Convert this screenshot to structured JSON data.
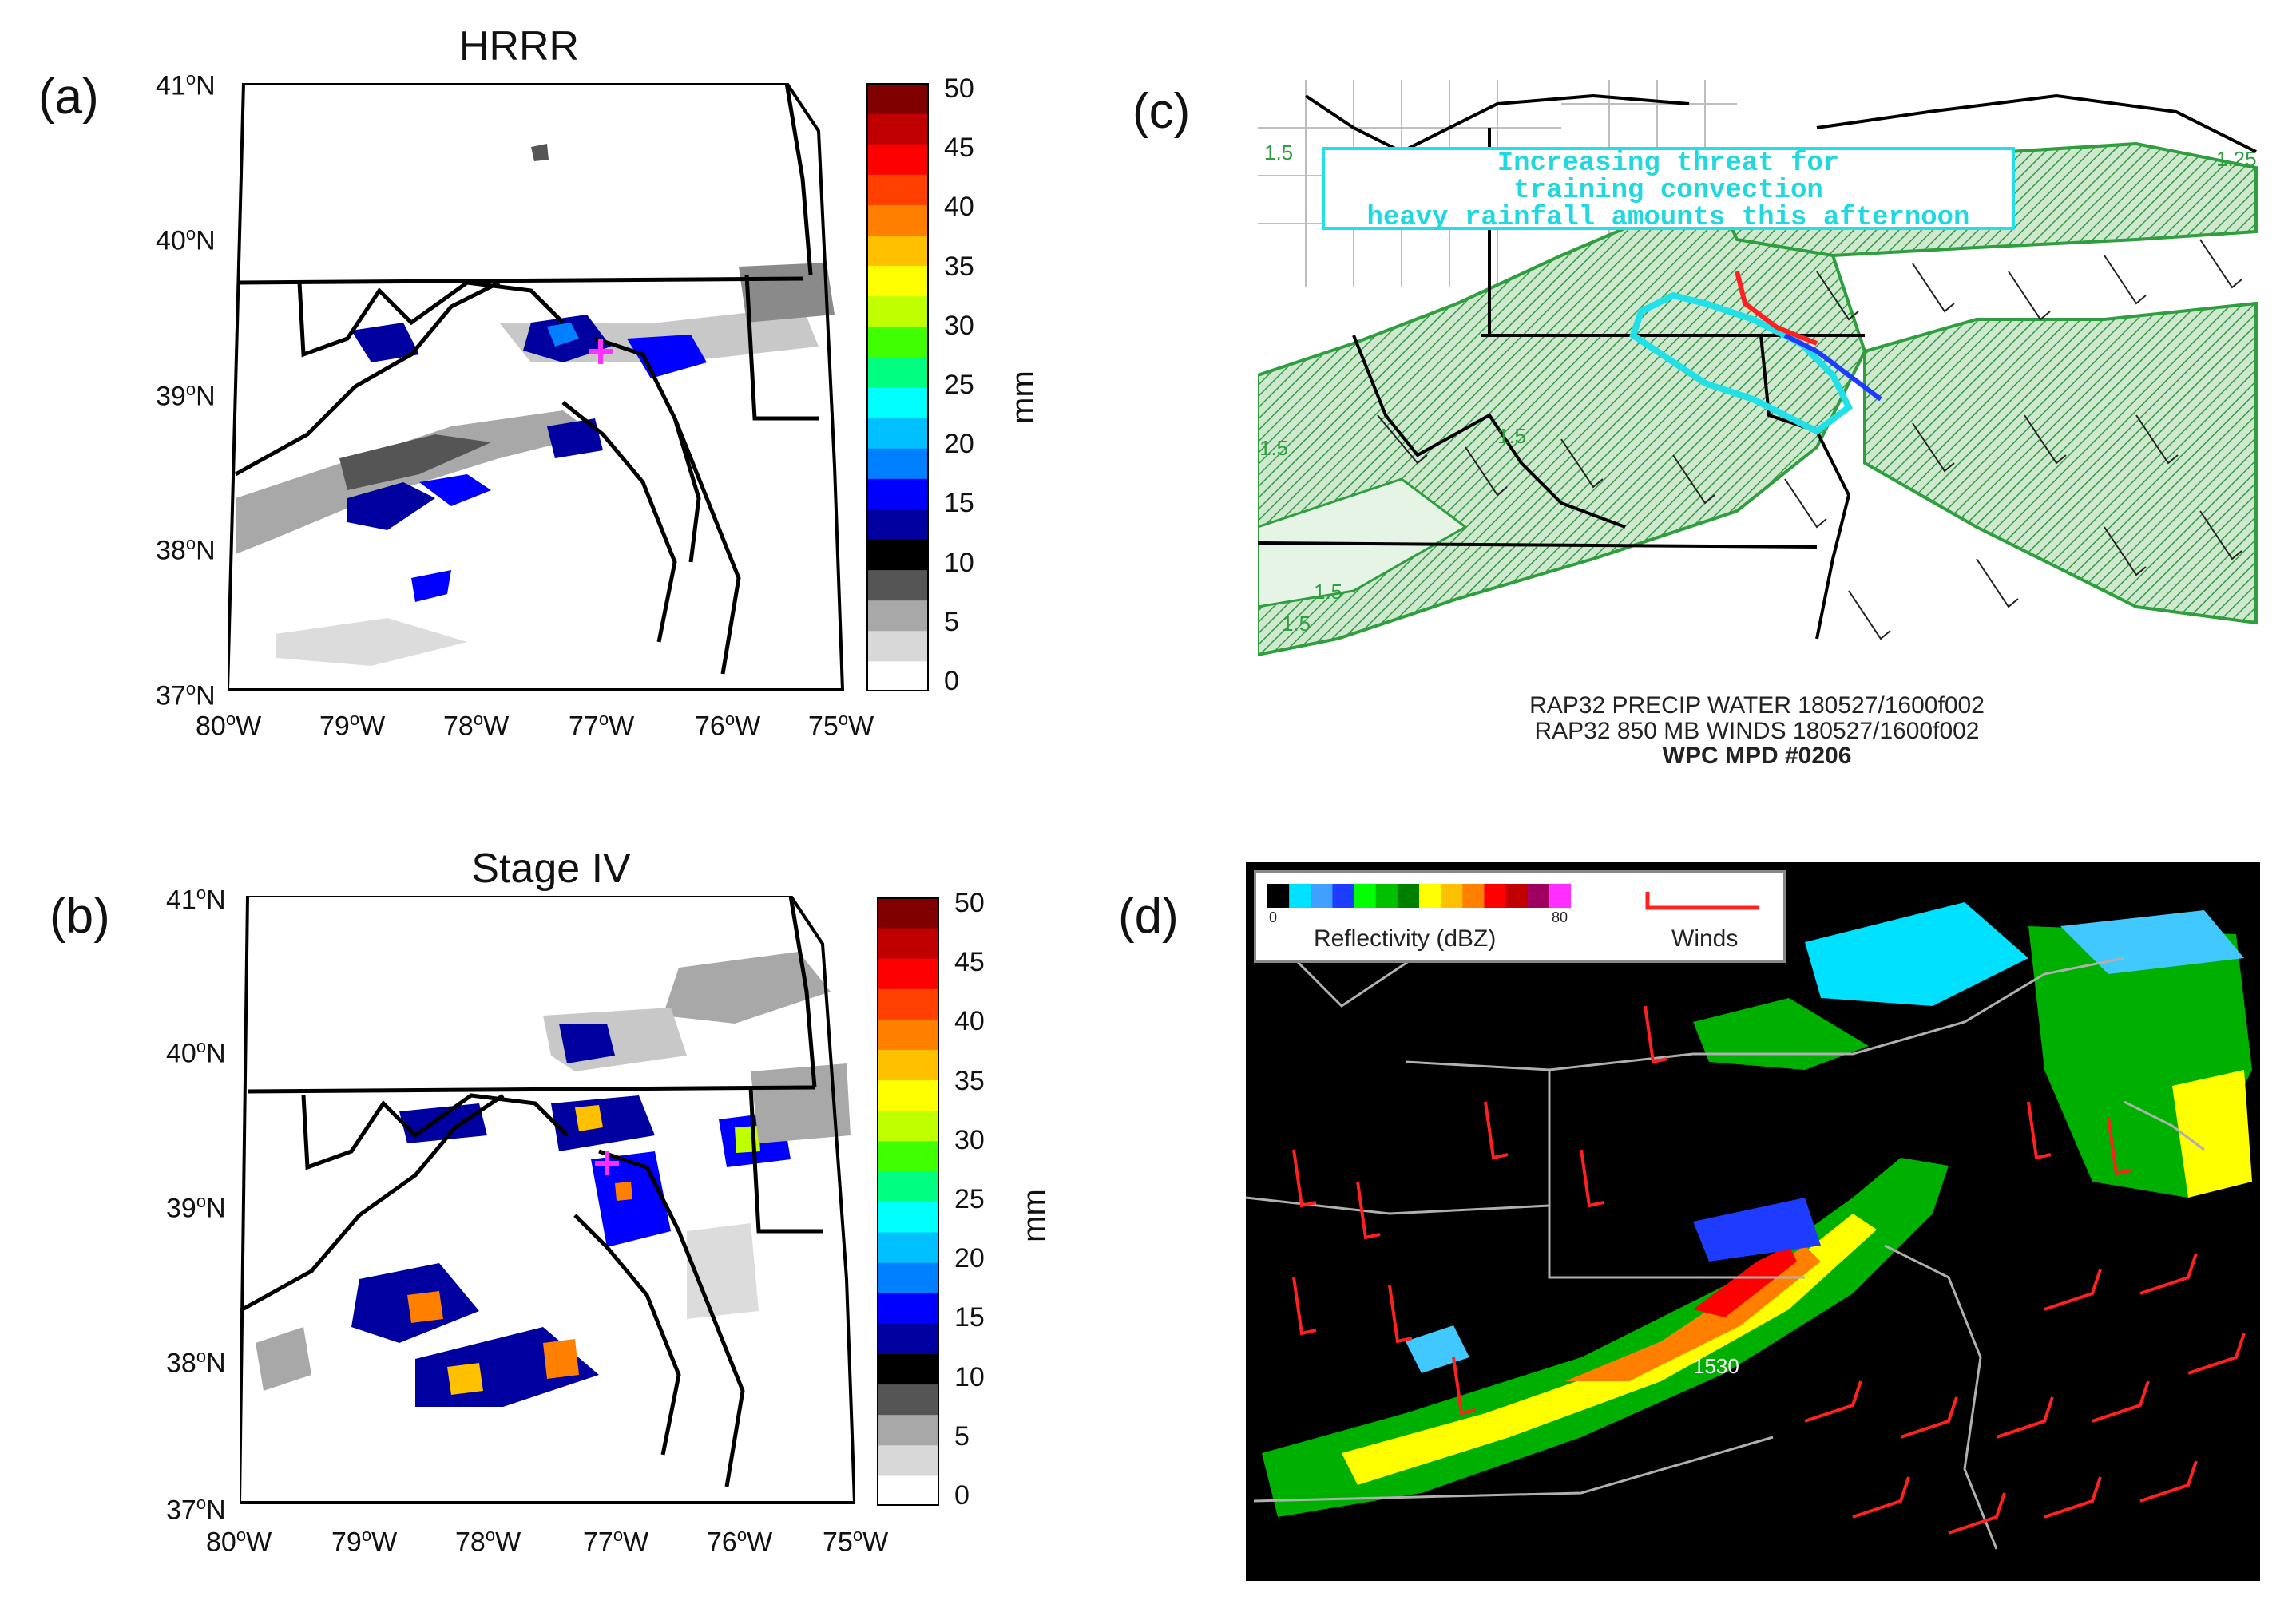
{
  "panels": {
    "a": {
      "letter": "(a)",
      "title": "HRRR"
    },
    "b": {
      "letter": "(b)",
      "title": "Stage IV"
    },
    "c": {
      "letter": "(c)",
      "mpd_text": [
        "Increasing threat for",
        "training convection",
        "heavy rainfall amounts this afternoon"
      ],
      "caption_lines": [
        "RAP32 PRECIP WATER 180527/1600f002",
        "RAP32 850 MB WINDS 180527/1600f002"
      ],
      "caption_bold": "WPC MPD #0206",
      "contour_labels": [
        "1.5",
        "1.25",
        "1.5",
        "1.5",
        "1.5",
        "1.5"
      ]
    },
    "d": {
      "letter": "(d)",
      "legend_reflectivity": "Reflectivity (dBZ)",
      "legend_min": "0",
      "legend_max": "80",
      "legend_winds": "Winds",
      "contour_label": "1530"
    }
  },
  "axes": {
    "lat_ticks": [
      "41",
      "40",
      "39",
      "38",
      "37"
    ],
    "lat_suffix": "N",
    "lon_ticks": [
      "80",
      "79",
      "78",
      "77",
      "76",
      "75"
    ],
    "lon_suffix": "W",
    "degree": "o"
  },
  "colorbar": {
    "unit": "mm",
    "ticks": [
      "50",
      "45",
      "40",
      "35",
      "30",
      "25",
      "20",
      "15",
      "10",
      "5",
      "0"
    ],
    "colors": [
      "#ffffff",
      "#d8d8d8",
      "#a8a8a8",
      "#555555",
      "#000000",
      "#0000a0",
      "#0000ff",
      "#0080ff",
      "#00c0ff",
      "#00ffff",
      "#00ff80",
      "#40ff00",
      "#c0ff00",
      "#ffff00",
      "#ffc000",
      "#ff8000",
      "#ff4000",
      "#ff0000",
      "#c00000",
      "#800000"
    ]
  },
  "colors": {
    "pw_green": "#2e9e3e",
    "wind_red": "#ff2020",
    "marker_magenta": "#ff30ff",
    "mpd_cyan": "#22e0e8"
  }
}
